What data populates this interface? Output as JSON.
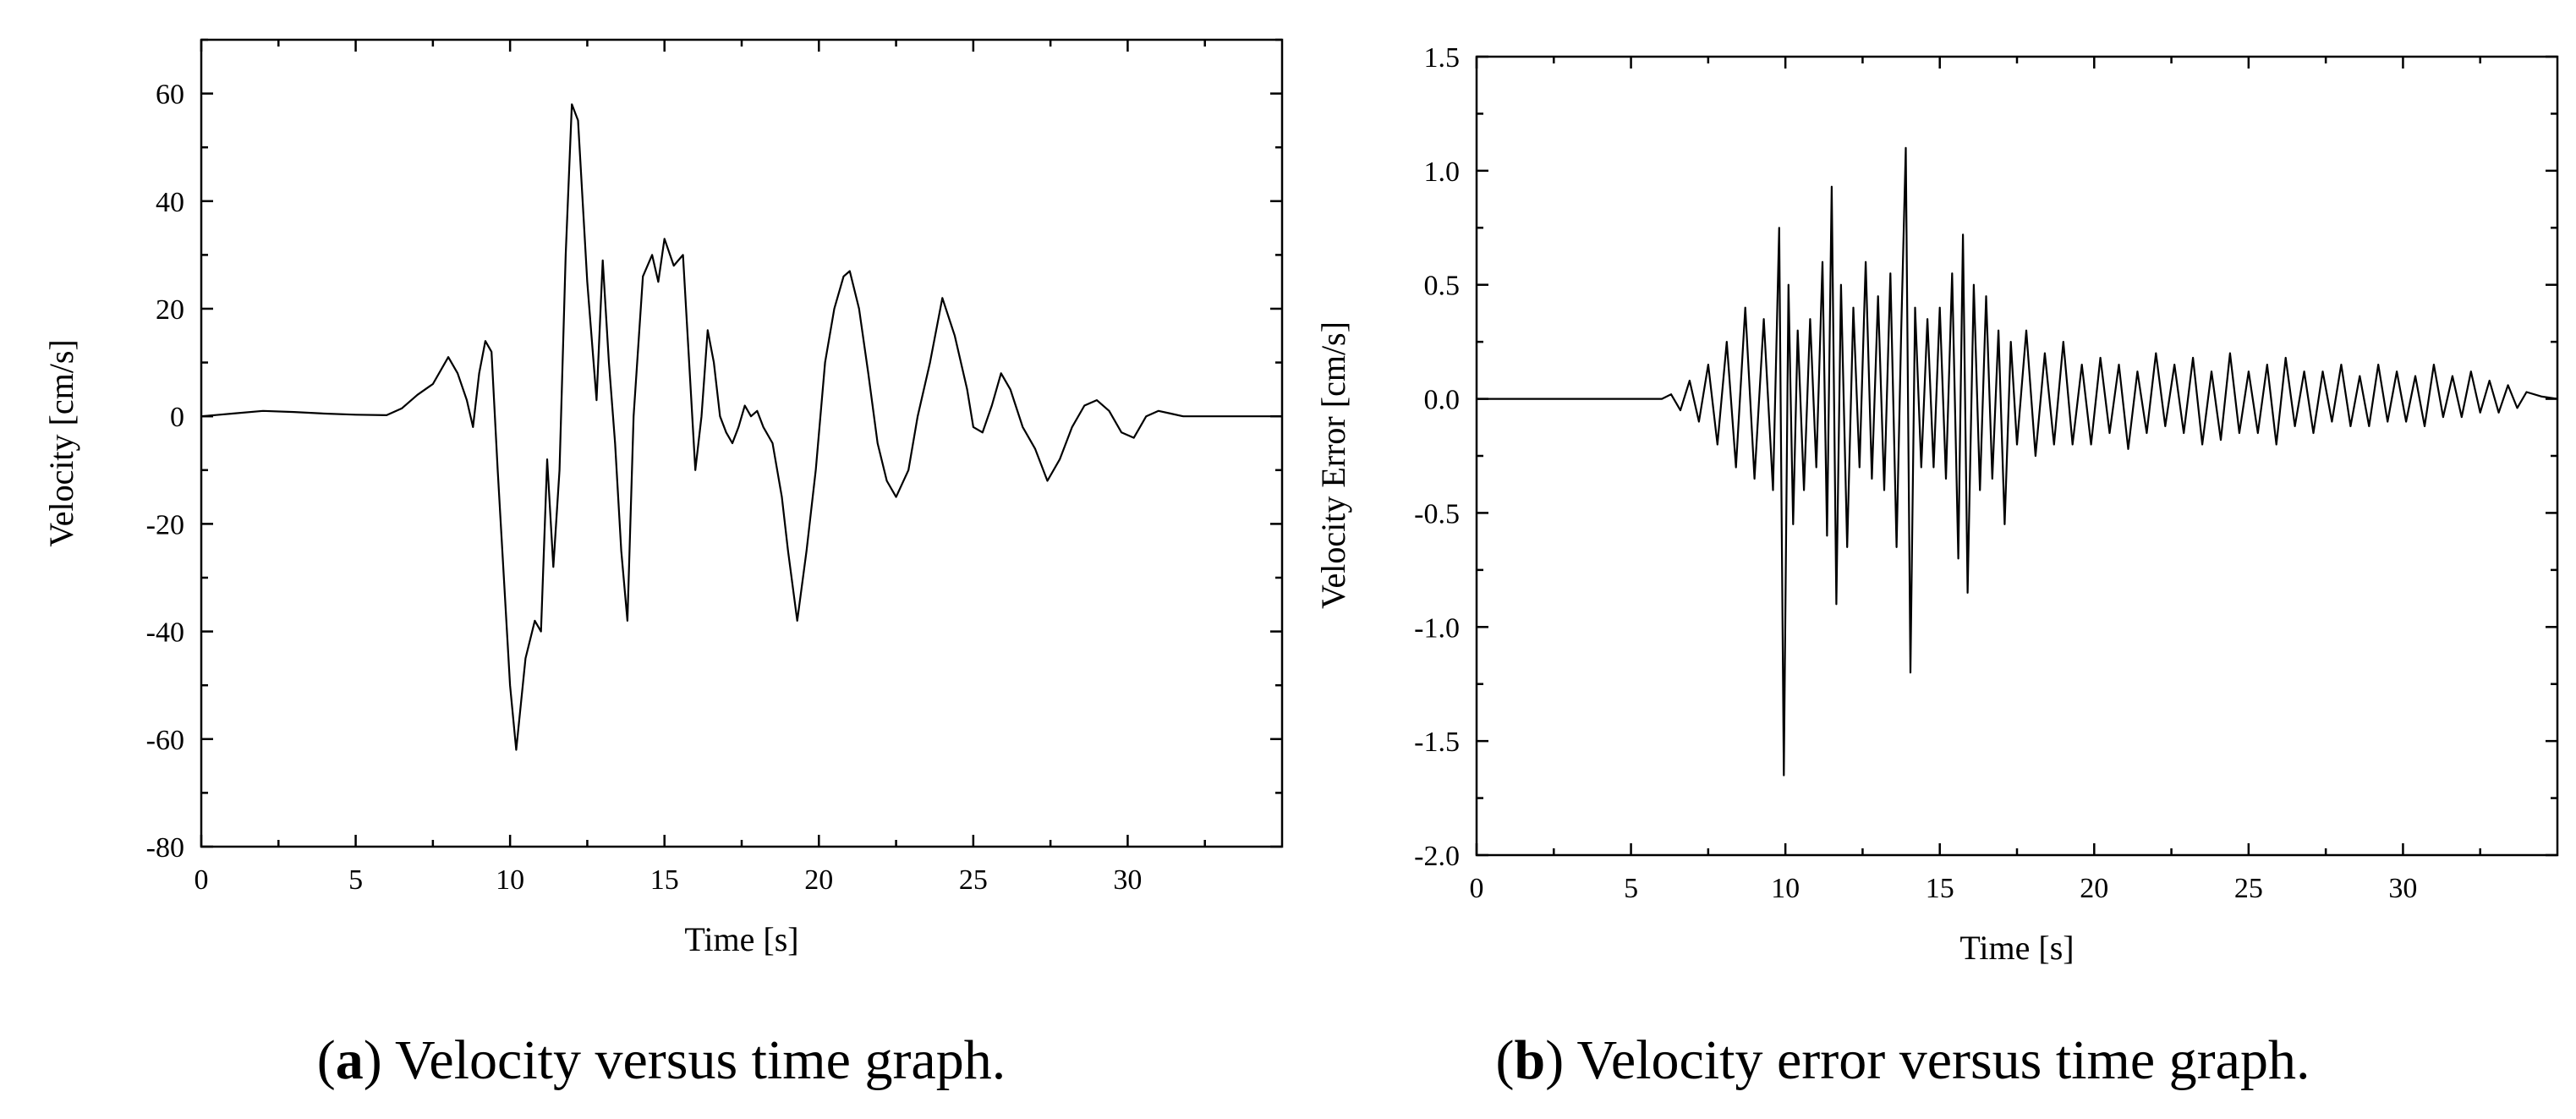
{
  "chart_data": [
    {
      "type": "line",
      "id": "a",
      "xlabel": "Time [s]",
      "ylabel": "Velocity [cm/s]",
      "xlim": [
        0,
        35
      ],
      "ylim": [
        -80,
        70
      ],
      "x_ticks": [
        0,
        5,
        10,
        15,
        20,
        25,
        30
      ],
      "y_ticks": [
        -80,
        -60,
        -40,
        -20,
        0,
        20,
        40,
        60
      ],
      "x_tick_labels": [
        "0",
        "5",
        "10",
        "15",
        "20",
        "25",
        "30"
      ],
      "y_tick_labels": [
        "-80",
        "-60",
        "-40",
        "-20",
        "0",
        "20",
        "40",
        "60"
      ],
      "caption_letter": "a",
      "caption_text": "Velocity versus time graph.",
      "series": [
        {
          "name": "Velocity",
          "x": [
            0,
            1,
            2,
            3,
            4,
            5,
            6,
            6.5,
            7,
            7.5,
            8,
            8.3,
            8.6,
            8.8,
            9.0,
            9.2,
            9.4,
            9.6,
            9.8,
            10.0,
            10.2,
            10.5,
            10.8,
            11.0,
            11.2,
            11.4,
            11.6,
            11.8,
            12.0,
            12.2,
            12.5,
            12.8,
            13.0,
            13.2,
            13.4,
            13.6,
            13.8,
            14.0,
            14.3,
            14.6,
            14.8,
            15.0,
            15.3,
            15.6,
            15.8,
            16.0,
            16.2,
            16.4,
            16.6,
            16.8,
            17.0,
            17.2,
            17.4,
            17.6,
            17.8,
            18.0,
            18.2,
            18.5,
            18.8,
            19.0,
            19.3,
            19.6,
            19.9,
            20.2,
            20.5,
            20.8,
            21.0,
            21.3,
            21.6,
            21.9,
            22.2,
            22.5,
            22.9,
            23.2,
            23.6,
            24.0,
            24.4,
            24.8,
            25.0,
            25.3,
            25.6,
            25.9,
            26.2,
            26.6,
            27.0,
            27.4,
            27.8,
            28.2,
            28.6,
            29.0,
            29.4,
            29.8,
            30.2,
            30.6,
            31.0,
            31.4,
            31.8,
            32.2,
            32.6,
            33.0,
            33.5,
            34.0,
            34.5,
            35.0
          ],
          "values": [
            0,
            0.5,
            1,
            0.8,
            0.5,
            0.3,
            0.2,
            1.5,
            4,
            6,
            11,
            8,
            3,
            -2,
            8,
            14,
            12,
            -10,
            -30,
            -50,
            -62,
            -45,
            -38,
            -40,
            -8,
            -28,
            -10,
            30,
            58,
            55,
            25,
            3,
            29,
            10,
            -5,
            -25,
            -38,
            0,
            26,
            30,
            25,
            33,
            28,
            30,
            10,
            -10,
            0,
            16,
            10,
            0,
            -3,
            -5,
            -2,
            2,
            0,
            1,
            -2,
            -5,
            -15,
            -25,
            -38,
            -25,
            -10,
            10,
            20,
            26,
            27,
            20,
            8,
            -5,
            -12,
            -15,
            -10,
            0,
            10,
            22,
            15,
            5,
            -2,
            -3,
            2,
            8,
            5,
            -2,
            -6,
            -12,
            -8,
            -2,
            2,
            3,
            1,
            -3,
            -4,
            0,
            1,
            0.5,
            0,
            0,
            0,
            0,
            0,
            0,
            0,
            0
          ]
        }
      ]
    },
    {
      "type": "line",
      "id": "b",
      "xlabel": "Time [s]",
      "ylabel": "Velocity Error [cm/s]",
      "xlim": [
        0,
        35
      ],
      "ylim": [
        -2.0,
        1.5
      ],
      "x_ticks": [
        0,
        5,
        10,
        15,
        20,
        25,
        30
      ],
      "y_ticks": [
        -2.0,
        -1.5,
        -1.0,
        -0.5,
        0.0,
        0.5,
        1.0,
        1.5
      ],
      "x_tick_labels": [
        "0",
        "5",
        "10",
        "15",
        "20",
        "25",
        "30"
      ],
      "y_tick_labels": [
        "-2.0",
        "-1.5",
        "-1.0",
        "-0.5",
        "0.0",
        "0.5",
        "1.0",
        "1.5"
      ],
      "caption_letter": "b",
      "caption_text": "Velocity error versus time graph.",
      "series": [
        {
          "name": "Velocity Error",
          "x": [
            0,
            2,
            4,
            6.0,
            6.3,
            6.6,
            6.9,
            7.2,
            7.5,
            7.8,
            8.1,
            8.4,
            8.7,
            9.0,
            9.3,
            9.6,
            9.8,
            9.95,
            10.1,
            10.25,
            10.4,
            10.6,
            10.8,
            11.0,
            11.2,
            11.35,
            11.5,
            11.65,
            11.8,
            12.0,
            12.2,
            12.4,
            12.6,
            12.8,
            13.0,
            13.2,
            13.4,
            13.6,
            13.75,
            13.9,
            14.05,
            14.2,
            14.4,
            14.6,
            14.8,
            15.0,
            15.2,
            15.4,
            15.6,
            15.75,
            15.9,
            16.1,
            16.3,
            16.5,
            16.7,
            16.9,
            17.1,
            17.3,
            17.5,
            17.8,
            18.1,
            18.4,
            18.7,
            19.0,
            19.3,
            19.6,
            19.9,
            20.2,
            20.5,
            20.8,
            21.1,
            21.4,
            21.7,
            22.0,
            22.3,
            22.6,
            22.9,
            23.2,
            23.5,
            23.8,
            24.1,
            24.4,
            24.7,
            25.0,
            25.3,
            25.6,
            25.9,
            26.2,
            26.5,
            26.8,
            27.1,
            27.4,
            27.7,
            28.0,
            28.3,
            28.6,
            28.9,
            29.2,
            29.5,
            29.8,
            30.1,
            30.4,
            30.7,
            31.0,
            31.3,
            31.6,
            31.9,
            32.2,
            32.5,
            32.8,
            33.1,
            33.4,
            33.7,
            34.0,
            34.5,
            35.0
          ],
          "values": [
            0,
            0,
            0,
            0,
            0.02,
            -0.05,
            0.08,
            -0.1,
            0.15,
            -0.2,
            0.25,
            -0.3,
            0.4,
            -0.35,
            0.35,
            -0.4,
            0.75,
            -1.65,
            0.5,
            -0.55,
            0.3,
            -0.4,
            0.35,
            -0.3,
            0.6,
            -0.6,
            0.93,
            -0.9,
            0.5,
            -0.65,
            0.4,
            -0.3,
            0.6,
            -0.35,
            0.45,
            -0.4,
            0.55,
            -0.65,
            0.3,
            1.1,
            -1.2,
            0.4,
            -0.3,
            0.35,
            -0.3,
            0.4,
            -0.35,
            0.55,
            -0.7,
            0.72,
            -0.85,
            0.5,
            -0.4,
            0.45,
            -0.35,
            0.3,
            -0.55,
            0.25,
            -0.2,
            0.3,
            -0.25,
            0.2,
            -0.2,
            0.25,
            -0.2,
            0.15,
            -0.2,
            0.18,
            -0.15,
            0.15,
            -0.22,
            0.12,
            -0.15,
            0.2,
            -0.12,
            0.15,
            -0.15,
            0.18,
            -0.2,
            0.12,
            -0.18,
            0.2,
            -0.15,
            0.12,
            -0.15,
            0.15,
            -0.2,
            0.18,
            -0.12,
            0.12,
            -0.15,
            0.12,
            -0.1,
            0.15,
            -0.12,
            0.1,
            -0.12,
            0.15,
            -0.1,
            0.12,
            -0.1,
            0.1,
            -0.12,
            0.15,
            -0.08,
            0.1,
            -0.08,
            0.12,
            -0.06,
            0.08,
            -0.06,
            0.06,
            -0.04,
            0.03,
            0.01,
            0
          ]
        }
      ]
    }
  ]
}
